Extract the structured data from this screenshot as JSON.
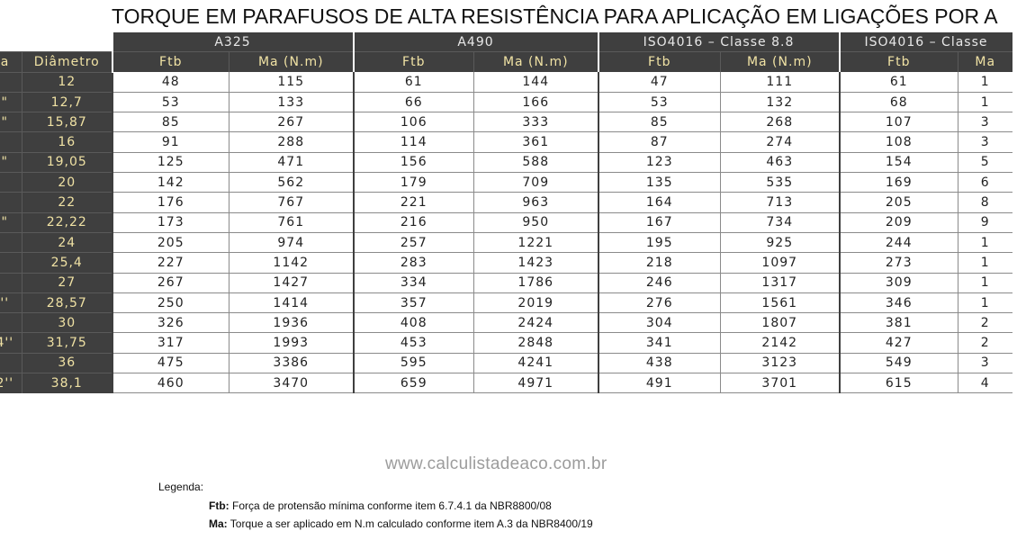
{
  "title": "TORQUE EM PARAFUSOS DE ALTA RESISTÊNCIA PARA APLICAÇÃO EM LIGAÇÕES POR A",
  "groups": [
    "A325",
    "A490",
    "ISO4016 – Classe 8.8",
    "ISO4016 – Classe"
  ],
  "columns": [
    "a",
    "Diâmetro",
    "Ftb",
    "Ma (N.m)",
    "Ftb",
    "Ma (N.m)",
    "Ftb",
    "Ma (N.m)",
    "Ftb",
    "Ma"
  ],
  "rows": [
    {
      "size": "",
      "dia": "12",
      "v": [
        "48",
        "115",
        "61",
        "144",
        "47",
        "111",
        "61",
        "1"
      ]
    },
    {
      "size": "\"",
      "dia": "12,7",
      "v": [
        "53",
        "133",
        "66",
        "166",
        "53",
        "132",
        "68",
        "1"
      ]
    },
    {
      "size": "\"",
      "dia": "15,87",
      "v": [
        "85",
        "267",
        "106",
        "333",
        "85",
        "268",
        "107",
        "3"
      ]
    },
    {
      "size": "",
      "dia": "16",
      "v": [
        "91",
        "288",
        "114",
        "361",
        "87",
        "274",
        "108",
        "3"
      ]
    },
    {
      "size": "\"",
      "dia": "19,05",
      "v": [
        "125",
        "471",
        "156",
        "588",
        "123",
        "463",
        "154",
        "5"
      ]
    },
    {
      "size": "",
      "dia": "20",
      "v": [
        "142",
        "562",
        "179",
        "709",
        "135",
        "535",
        "169",
        "6"
      ]
    },
    {
      "size": "",
      "dia": "22",
      "v": [
        "176",
        "767",
        "221",
        "963",
        "164",
        "713",
        "205",
        "8"
      ]
    },
    {
      "size": "\"",
      "dia": "22,22",
      "v": [
        "173",
        "761",
        "216",
        "950",
        "167",
        "734",
        "209",
        "9"
      ]
    },
    {
      "size": "",
      "dia": "24",
      "v": [
        "205",
        "974",
        "257",
        "1221",
        "195",
        "925",
        "244",
        "1"
      ]
    },
    {
      "size": "",
      "dia": "25,4",
      "v": [
        "227",
        "1142",
        "283",
        "1423",
        "218",
        "1097",
        "273",
        "1"
      ]
    },
    {
      "size": "",
      "dia": "27",
      "v": [
        "267",
        "1427",
        "334",
        "1786",
        "246",
        "1317",
        "309",
        "1"
      ]
    },
    {
      "size": "''",
      "dia": "28,57",
      "v": [
        "250",
        "1414",
        "357",
        "2019",
        "276",
        "1561",
        "346",
        "1"
      ]
    },
    {
      "size": "",
      "dia": "30",
      "v": [
        "326",
        "1936",
        "408",
        "2424",
        "304",
        "1807",
        "381",
        "2"
      ]
    },
    {
      "size": "4''",
      "dia": "31,75",
      "v": [
        "317",
        "1993",
        "453",
        "2848",
        "341",
        "2142",
        "427",
        "2"
      ]
    },
    {
      "size": "",
      "dia": "36",
      "v": [
        "475",
        "3386",
        "595",
        "4241",
        "438",
        "3123",
        "549",
        "3"
      ]
    },
    {
      "size": "2''",
      "dia": "38,1",
      "v": [
        "460",
        "3470",
        "659",
        "4971",
        "491",
        "3701",
        "615",
        "4"
      ]
    }
  ],
  "watermark": "www.calculistadeaco.com.br",
  "legend": {
    "title": "Legenda:",
    "items": [
      {
        "key": "Ftb:",
        "text": "Força de protensão mínima conforme item 6.7.4.1 da NBR8800/08"
      },
      {
        "key": "Ma:",
        "text": "Torque a ser aplicado em N.m calculado conforme item A.3 da NBR8400/19"
      }
    ]
  }
}
